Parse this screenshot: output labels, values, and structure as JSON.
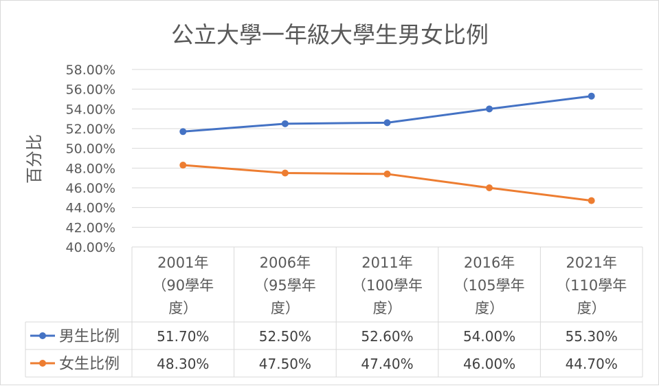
{
  "chart_data": {
    "type": "line",
    "title": "公立大學一年級大學生男女比例",
    "ylabel": "百分比",
    "xlabel": "",
    "ylim": [
      0.4,
      0.58
    ],
    "y_ticks": [
      0.4,
      0.42,
      0.44,
      0.46,
      0.48,
      0.5,
      0.52,
      0.54,
      0.56,
      0.58
    ],
    "y_tick_labels": [
      "40.00%",
      "42.00%",
      "44.00%",
      "46.00%",
      "48.00%",
      "50.00%",
      "52.00%",
      "54.00%",
      "56.00%",
      "58.00%"
    ],
    "grid": true,
    "legend_placement": "data-table",
    "categories": [
      [
        "2001年",
        "（90學年",
        "度）"
      ],
      [
        "2006年",
        "（95學年",
        "度）"
      ],
      [
        "2011年",
        "（100學年",
        "度）"
      ],
      [
        "2016年",
        "（105學年",
        "度）"
      ],
      [
        "2021年",
        "（110學年",
        "度）"
      ]
    ],
    "series": [
      {
        "name": "男生比例",
        "color": "#4472C4",
        "values": [
          0.517,
          0.525,
          0.526,
          0.54,
          0.553
        ],
        "labels": [
          "51.70%",
          "52.50%",
          "52.60%",
          "54.00%",
          "55.30%"
        ]
      },
      {
        "name": "女生比例",
        "color": "#ED7D31",
        "values": [
          0.483,
          0.475,
          0.474,
          0.46,
          0.447
        ],
        "labels": [
          "48.30%",
          "47.50%",
          "47.40%",
          "46.00%",
          "44.70%"
        ]
      }
    ]
  }
}
